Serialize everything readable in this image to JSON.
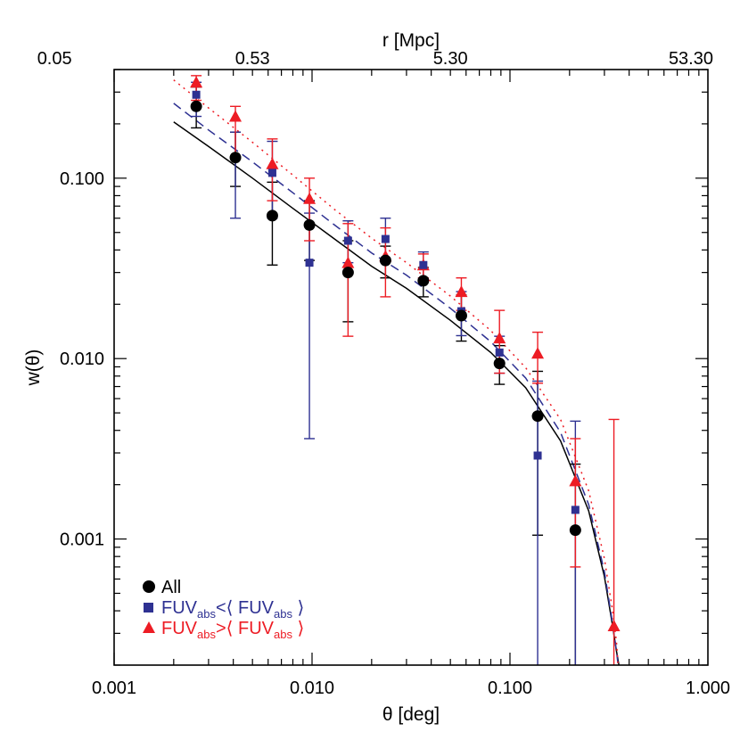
{
  "chart_data": {
    "type": "scatter",
    "title": "",
    "xlabel": "θ [deg]",
    "ylabel": "w(θ)",
    "top_xlabel": "r [Mpc]",
    "xscale": "log",
    "yscale": "log",
    "xlim": [
      0.001,
      1.0
    ],
    "ylim": [
      0.0002,
      0.4
    ],
    "x_ticks": [
      0.001,
      0.01,
      0.1,
      1.0
    ],
    "x_tick_labels": [
      "0.001",
      "0.010",
      "0.100",
      "1.000"
    ],
    "y_ticks": [
      0.001,
      0.01,
      0.1
    ],
    "y_tick_labels": [
      "0.001",
      "0.010",
      "0.100"
    ],
    "top_ticks": [
      0.0005,
      0.005,
      0.05,
      0.5
    ],
    "top_tick_labels": [
      "0.05",
      "0.53",
      "5.30",
      "53.30"
    ],
    "legend_placement": "bottom-left",
    "series": [
      {
        "name": "All",
        "marker": "circle",
        "color": "#000000",
        "x": [
          0.0026,
          0.0041,
          0.0063,
          0.0097,
          0.0152,
          0.0235,
          0.0365,
          0.0568,
          0.0885,
          0.138,
          0.214
        ],
        "y": [
          0.25,
          0.13,
          0.062,
          0.055,
          0.03,
          0.035,
          0.027,
          0.0173,
          0.0094,
          0.0048,
          0.00112
        ],
        "y_low": [
          0.19,
          0.09,
          0.033,
          0.035,
          0.016,
          0.028,
          0.022,
          0.0125,
          0.0072,
          0.00105,
          0.0002
        ],
        "y_high": [
          0.32,
          0.18,
          0.095,
          0.075,
          0.045,
          0.042,
          0.032,
          0.0225,
          0.0118,
          0.0085,
          0.0026
        ]
      },
      {
        "name": "FUV_abs<⟨ FUV_abs ⟩",
        "marker": "square",
        "color": "#2e3192",
        "x": [
          0.0026,
          0.0041,
          0.0063,
          0.0097,
          0.0152,
          0.0235,
          0.0365,
          0.0568,
          0.0885,
          0.138,
          0.214
        ],
        "y": [
          0.29,
          0.13,
          0.107,
          0.034,
          0.045,
          0.046,
          0.033,
          0.0183,
          0.0108,
          0.0029,
          0.00145
        ],
        "y_low": [
          0.22,
          0.06,
          0.06,
          0.0036,
          0.034,
          0.036,
          0.028,
          0.0134,
          0.0083,
          0.0002,
          0.0002
        ],
        "y_high": [
          0.34,
          0.18,
          0.16,
          0.064,
          0.058,
          0.06,
          0.039,
          0.0235,
          0.0133,
          0.0075,
          0.0045
        ]
      },
      {
        "name": "FUV_abs>⟨ FUV_abs ⟩",
        "marker": "triangle",
        "color": "#ed1c24",
        "x": [
          0.0026,
          0.0041,
          0.0063,
          0.0097,
          0.0152,
          0.0235,
          0.0365,
          0.0568,
          0.0885,
          0.138,
          0.214,
          0.335
        ],
        "y": [
          0.34,
          0.22,
          0.12,
          0.077,
          0.034,
          0.037,
          0.033,
          0.0235,
          0.013,
          0.0107,
          0.0021,
          0.00033
        ],
        "y_low": [
          0.27,
          0.13,
          0.075,
          0.045,
          0.0133,
          0.022,
          0.028,
          0.0185,
          0.0083,
          0.0073,
          0.0007,
          0.0002
        ],
        "y_high": [
          0.37,
          0.25,
          0.165,
          0.1,
          0.056,
          0.053,
          0.038,
          0.028,
          0.0185,
          0.014,
          0.0036,
          0.0046
        ]
      }
    ],
    "fits": [
      {
        "series": "All",
        "color": "#000000",
        "dash": "none",
        "x": [
          0.002,
          0.003,
          0.005,
          0.008,
          0.013,
          0.02,
          0.03,
          0.05,
          0.08,
          0.12,
          0.18,
          0.25,
          0.3,
          0.33,
          0.345,
          0.355
        ],
        "y": [
          0.205,
          0.15,
          0.1,
          0.068,
          0.046,
          0.0325,
          0.0245,
          0.0163,
          0.0108,
          0.0069,
          0.0035,
          0.00143,
          0.00062,
          0.00033,
          0.00024,
          0.0002
        ]
      },
      {
        "series": "FUV_abs<⟨ FUV_abs ⟩",
        "color": "#2e3192",
        "dash": "10,6",
        "x": [
          0.002,
          0.003,
          0.005,
          0.008,
          0.013,
          0.02,
          0.03,
          0.05,
          0.08,
          0.12,
          0.18,
          0.25,
          0.3,
          0.33,
          0.345,
          0.352
        ],
        "y": [
          0.26,
          0.185,
          0.123,
          0.083,
          0.055,
          0.0385,
          0.029,
          0.019,
          0.0124,
          0.0078,
          0.0039,
          0.00155,
          0.00066,
          0.00034,
          0.00024,
          0.0002
        ]
      },
      {
        "series": "FUV_abs>⟨ FUV_abs ⟩",
        "color": "#ed1c24",
        "dash": "2,5",
        "x": [
          0.002,
          0.003,
          0.005,
          0.008,
          0.013,
          0.02,
          0.03,
          0.05,
          0.08,
          0.12,
          0.18,
          0.25,
          0.3,
          0.33,
          0.345,
          0.352
        ],
        "y": [
          0.35,
          0.245,
          0.158,
          0.104,
          0.067,
          0.0465,
          0.034,
          0.0222,
          0.0143,
          0.0089,
          0.0046,
          0.00185,
          0.00078,
          0.0004,
          0.00027,
          0.0002
        ]
      }
    ]
  }
}
